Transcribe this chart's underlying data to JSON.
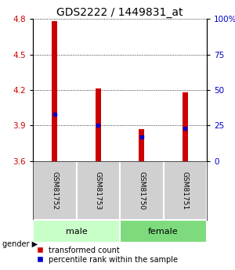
{
  "title": "GDS2222 / 1449831_at",
  "samples": [
    "GSM81752",
    "GSM81753",
    "GSM81750",
    "GSM81751"
  ],
  "groups": [
    "male",
    "male",
    "female",
    "female"
  ],
  "transformed_counts": [
    4.78,
    4.21,
    3.87,
    4.18
  ],
  "percentile_ranks": [
    33,
    25,
    17,
    23
  ],
  "ylim_left": [
    3.6,
    4.8
  ],
  "ylim_right": [
    0,
    100
  ],
  "yticks_left": [
    3.6,
    3.9,
    4.2,
    4.5,
    4.8
  ],
  "yticks_right": [
    0,
    25,
    50,
    75,
    100
  ],
  "bar_color": "#cc0000",
  "dot_color": "#0000cc",
  "bar_width": 0.12,
  "male_color": "#c8ffc8",
  "female_color": "#7ddb7d",
  "title_fontsize": 10,
  "tick_fontsize": 7.5,
  "legend_fontsize": 7,
  "sample_fontsize": 6.5,
  "gender_fontsize": 8
}
